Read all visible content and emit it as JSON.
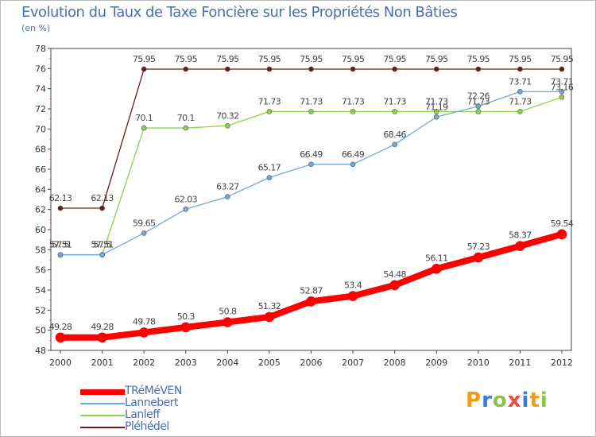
{
  "title": "Evolution du Taux de Taxe Foncière sur les Propriétés Non Bâties",
  "subtitle": "(en %)",
  "logo": {
    "text": "Proxiti",
    "colors": [
      "#f39c12",
      "#3a7bd5",
      "#8bc34a",
      "#e74c3c",
      "#3a7bd5",
      "#f39c12",
      "#8bc34a"
    ]
  },
  "chart_data": {
    "type": "line",
    "title": "Evolution du Taux de Taxe Foncière sur les Propriétés Non Bâties",
    "ylabel": "(en %)",
    "xlabel": "",
    "x": [
      "2000",
      "2001",
      "2002",
      "2003",
      "2004",
      "2005",
      "2006",
      "2007",
      "2008",
      "2009",
      "2010",
      "2011",
      "2012"
    ],
    "ylim": [
      48,
      78
    ],
    "yticks": [
      "48",
      "50",
      "52",
      "54",
      "56",
      "58",
      "60",
      "62",
      "64",
      "66",
      "68",
      "70",
      "72",
      "74",
      "76",
      "78"
    ],
    "grid": false,
    "legend": "bottom-left",
    "series": [
      {
        "name": "TRéMéVEN",
        "color": "#ff0000",
        "values": [
          49.28,
          49.28,
          49.78,
          50.3,
          50.8,
          51.32,
          52.87,
          53.4,
          54.48,
          56.11,
          57.23,
          58.37,
          59.54
        ],
        "labels": [
          "49.28",
          "49.28",
          "49.78",
          "50.3",
          "50.8",
          "51.32",
          "52.87",
          "53.4",
          "54.48",
          "56.11",
          "57.23",
          "58.37",
          "59.54"
        ]
      },
      {
        "name": "Lannebert",
        "color": "#6fa8dc",
        "values": [
          57.51,
          57.51,
          59.65,
          62.03,
          63.27,
          65.17,
          66.49,
          66.49,
          68.46,
          71.19,
          72.26,
          73.71,
          73.71
        ],
        "labels": [
          "57.51",
          "57.51",
          "59.65",
          "62.03",
          "63.27",
          "65.17",
          "66.49",
          "66.49",
          "68.46",
          "71.19",
          "72.26",
          "73.71",
          "73.71"
        ]
      },
      {
        "name": "Lanleff",
        "color": "#8ed14f",
        "values": [
          57.5,
          57.5,
          70.1,
          70.1,
          70.32,
          71.73,
          71.73,
          71.73,
          71.73,
          71.73,
          71.73,
          71.73,
          73.16
        ],
        "labels": [
          "57.5",
          "57.5",
          "70.1",
          "70.1",
          "70.32",
          "71.73",
          "71.73",
          "71.73",
          "71.73",
          "71.73",
          "71.73",
          "71.73",
          "73.16"
        ]
      },
      {
        "name": "Pléhédel",
        "color": "#6b1a1a",
        "values": [
          62.13,
          62.13,
          75.95,
          75.95,
          75.95,
          75.95,
          75.95,
          75.95,
          75.95,
          75.95,
          75.95,
          75.95,
          75.95
        ],
        "labels": [
          "62.13",
          "62.13",
          "75.95",
          "75.95",
          "75.95",
          "75.95",
          "75.95",
          "75.95",
          "75.95",
          "75.95",
          "75.95",
          "75.95",
          "75.95"
        ]
      }
    ]
  }
}
